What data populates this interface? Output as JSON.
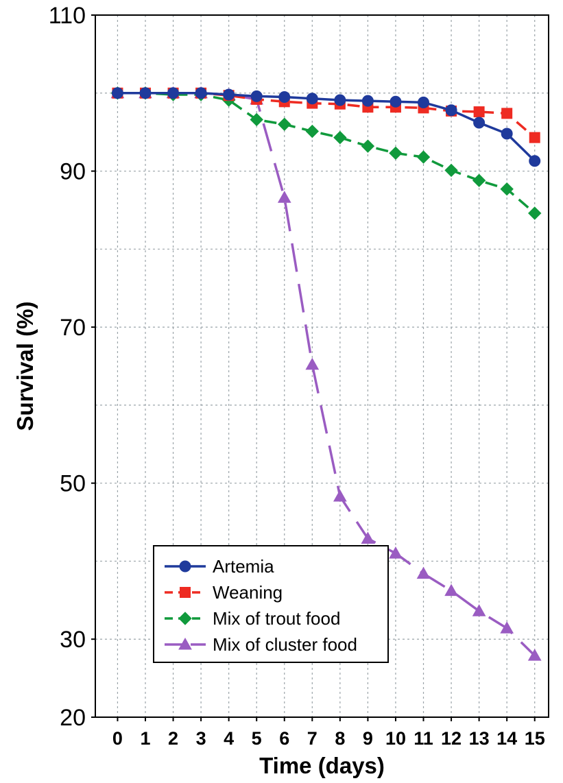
{
  "chart_data": {
    "type": "line",
    "title": "",
    "xlabel": "Time (days)",
    "ylabel": "Survival (%)",
    "x": [
      0,
      1,
      2,
      3,
      4,
      5,
      6,
      7,
      8,
      9,
      10,
      11,
      12,
      13,
      14,
      15
    ],
    "x_tick_labels": [
      "0",
      "1",
      "2",
      "3",
      "4",
      "5",
      "6",
      "7",
      "8",
      "9",
      "10",
      "11",
      "12",
      "13",
      "14",
      "15"
    ],
    "y_tick_labels": [
      "110",
      "90",
      "70",
      "50",
      "30",
      "20"
    ],
    "y_ticks": [
      110,
      90,
      70,
      50,
      30,
      20
    ],
    "ylim": [
      20,
      110
    ],
    "xlim": [
      -0.8,
      15.5
    ],
    "grid": true,
    "legend_position": "lower-left",
    "series": [
      {
        "name": "Artemia",
        "color": "#1f3a9c",
        "marker": "circle",
        "dash": "solid",
        "values": [
          100,
          100,
          100,
          100,
          99.8,
          99.6,
          99.5,
          99.3,
          99.1,
          99.0,
          98.9,
          98.8,
          97.8,
          96.2,
          94.8,
          91.3
        ]
      },
      {
        "name": "Weaning",
        "color": "#ee2b22",
        "marker": "square",
        "dash": "dashed",
        "values": [
          100,
          100,
          100,
          100,
          99.7,
          99.2,
          98.9,
          98.7,
          98.6,
          98.2,
          98.2,
          98.1,
          97.7,
          97.6,
          97.4,
          94.3
        ]
      },
      {
        "name": "Mix of trout food",
        "color": "#109a3c",
        "marker": "diamond",
        "dash": "dashed",
        "values": [
          100,
          100,
          99.8,
          99.8,
          99.1,
          96.6,
          96.0,
          95.1,
          94.3,
          93.2,
          92.3,
          91.8,
          90.1,
          88.8,
          87.7,
          84.6
        ]
      },
      {
        "name": "Mix of cluster food",
        "color": "#9a5cc2",
        "marker": "triangle",
        "dash": "long-dashed",
        "values": [
          100,
          100,
          100,
          100,
          99.8,
          99.2,
          86.6,
          65.2,
          48.3,
          42.9,
          41.0,
          38.4,
          36.2,
          33.6,
          31.4,
          27.9
        ]
      }
    ]
  }
}
